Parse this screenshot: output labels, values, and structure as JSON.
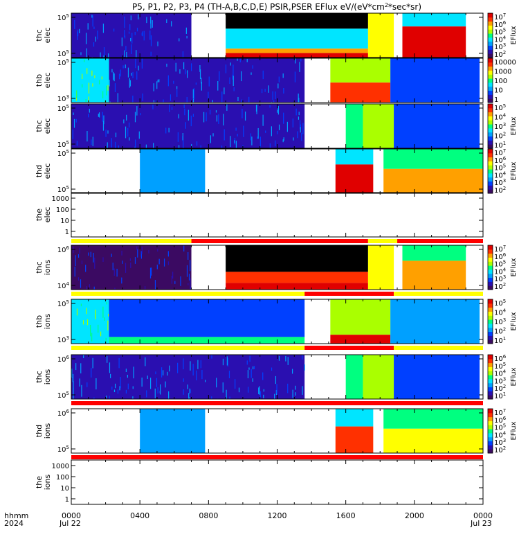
{
  "title_parts": {
    "prefix": "P5, P1, P2, P3, P4 (TH-A,B,C,D,E) PSIR,PSER EFlux eV/(eV*cm",
    "sup": "2",
    "suffix": "*sec*sr)"
  },
  "colors": {
    "void": "#000000",
    "gap": "#ffffff",
    "bar_yellow": "#ffff00",
    "bar_red": "#ff0000",
    "background_purple": "#3a0f6b"
  },
  "colorscale": [
    "#3b0a62",
    "#2a0fb0",
    "#0040ff",
    "#00a0ff",
    "#00e5ff",
    "#00ff80",
    "#aaff00",
    "#ffff00",
    "#ffa000",
    "#ff3000",
    "#e00000"
  ],
  "x_axis": {
    "range_hours": [
      0,
      24
    ],
    "tick_hours": [
      0,
      4,
      8,
      12,
      16,
      20,
      24
    ],
    "tick_labels": [
      "0000",
      "0400",
      "0800",
      "1200",
      "1600",
      "2000",
      "0000"
    ],
    "left_label_top": "hhmm",
    "left_label_bottom": "2024",
    "date_start": "Jul 22",
    "date_end": "Jul 23"
  },
  "chart_data": [
    {
      "type": "heatmap",
      "name": "thc-elec",
      "ylabel": [
        "thc",
        "elec"
      ],
      "y_ticks": [
        {
          "base": "10",
          "exp": "5"
        },
        {
          "base": "10",
          "exp": "5"
        }
      ],
      "colorbar": {
        "label": "EFlux",
        "ticks": [
          {
            "base": "10",
            "exp": "7"
          },
          {
            "base": "10",
            "exp": "6"
          },
          {
            "base": "10",
            "exp": "5"
          },
          {
            "base": "10",
            "exp": "4"
          },
          {
            "base": "10",
            "exp": "3"
          },
          {
            "base": "10",
            "exp": "2"
          }
        ]
      },
      "blocks": [
        {
          "x0": 0,
          "x1": 7,
          "y0": 0,
          "y1": 1,
          "level": 1,
          "noise": true
        },
        {
          "x0": 9,
          "x1": 17.3,
          "y0": 0,
          "y1": 0.35,
          "level": -1
        },
        {
          "x0": 9,
          "x1": 17.3,
          "y0": 0.35,
          "y1": 0.8,
          "level": 4
        },
        {
          "x0": 9,
          "x1": 17.3,
          "y0": 0.8,
          "y1": 0.9,
          "level": 8
        },
        {
          "x0": 9,
          "x1": 17.3,
          "y0": 0.9,
          "y1": 1,
          "level": 10
        },
        {
          "x0": 17.3,
          "x1": 18.8,
          "y0": 0,
          "y1": 1,
          "level": 7
        },
        {
          "x0": 19.3,
          "x1": 23,
          "y0": 0,
          "y1": 0.3,
          "level": 4
        },
        {
          "x0": 19.3,
          "x1": 23,
          "y0": 0.3,
          "y1": 1,
          "level": 10
        }
      ]
    },
    {
      "type": "heatmap",
      "name": "thb-elec",
      "ylabel": [
        "thb",
        "elec"
      ],
      "y_ticks": [
        {
          "base": "10",
          "exp": "5"
        },
        {
          "base": "10",
          "exp": "3"
        }
      ],
      "colorbar": {
        "label": "",
        "ticks": [
          {
            "base": "10000",
            "exp": ""
          },
          {
            "base": "1000",
            "exp": ""
          },
          {
            "base": "100",
            "exp": ""
          },
          {
            "base": "10",
            "exp": ""
          },
          {
            "base": "1",
            "exp": ""
          }
        ]
      },
      "blocks": [
        {
          "x0": 0,
          "x1": 2.2,
          "y0": 0,
          "y1": 1,
          "level": 4,
          "noise": true
        },
        {
          "x0": 2.2,
          "x1": 13.6,
          "y0": 0,
          "y1": 1,
          "level": 1,
          "noise": true
        },
        {
          "x0": 15.1,
          "x1": 18.6,
          "y0": 0,
          "y1": 0.55,
          "level": 6
        },
        {
          "x0": 15.1,
          "x1": 18.6,
          "y0": 0.55,
          "y1": 1,
          "level": 9
        },
        {
          "x0": 18.6,
          "x1": 23.8,
          "y0": 0,
          "y1": 1,
          "level": 2
        }
      ]
    },
    {
      "type": "heatmap",
      "name": "thc-elec-2",
      "ylabel": [
        "thc",
        "elec"
      ],
      "y_ticks": [
        {
          "base": "10",
          "exp": "5"
        },
        {
          "base": "10",
          "exp": "5"
        }
      ],
      "colorbar": {
        "label": "EFlux",
        "ticks": [
          {
            "base": "10",
            "exp": "5"
          },
          {
            "base": "10",
            "exp": "4"
          },
          {
            "base": "10",
            "exp": "3"
          },
          {
            "base": "10",
            "exp": "2"
          },
          {
            "base": "10",
            "exp": "1"
          }
        ]
      },
      "blocks": [
        {
          "x0": 0,
          "x1": 13.6,
          "y0": 0,
          "y1": 1,
          "level": 1,
          "noise": true
        },
        {
          "x0": 16,
          "x1": 17,
          "y0": 0,
          "y1": 1,
          "level": 5
        },
        {
          "x0": 17,
          "x1": 18.8,
          "y0": 0,
          "y1": 1,
          "level": 6
        },
        {
          "x0": 18.8,
          "x1": 23.8,
          "y0": 0,
          "y1": 1,
          "level": 2
        }
      ]
    },
    {
      "type": "heatmap",
      "name": "thd-elec",
      "ylabel": [
        "thd",
        "elec"
      ],
      "y_ticks": [
        {
          "base": "10",
          "exp": "5"
        },
        {
          "base": "10",
          "exp": "5"
        }
      ],
      "colorbar": {
        "label": "EFlux",
        "ticks": [
          {
            "base": "10",
            "exp": "7"
          },
          {
            "base": "10",
            "exp": "6"
          },
          {
            "base": "10",
            "exp": "5"
          },
          {
            "base": "10",
            "exp": "4"
          },
          {
            "base": "10",
            "exp": "3"
          },
          {
            "base": "10",
            "exp": "2"
          }
        ]
      },
      "blocks": [
        {
          "x0": 4,
          "x1": 7.8,
          "y0": 0,
          "y1": 1,
          "level": 3
        },
        {
          "x0": 15.4,
          "x1": 17.6,
          "y0": 0,
          "y1": 0.35,
          "level": 4
        },
        {
          "x0": 15.4,
          "x1": 17.6,
          "y0": 0.35,
          "y1": 1,
          "level": 10
        },
        {
          "x0": 18.2,
          "x1": 24,
          "y0": 0,
          "y1": 0.45,
          "level": 5
        },
        {
          "x0": 18.2,
          "x1": 24,
          "y0": 0.45,
          "y1": 1,
          "level": 8
        }
      ]
    },
    {
      "type": "line",
      "name": "the-elec",
      "ylabel": [
        "the",
        "elec"
      ],
      "y_ticks": [
        {
          "base": "1000",
          "exp": ""
        },
        {
          "base": "100",
          "exp": ""
        },
        {
          "base": "10",
          "exp": ""
        },
        {
          "base": "1",
          "exp": ""
        }
      ],
      "status_bar": [
        {
          "x0": 0,
          "x1": 7,
          "color": "bar_yellow"
        },
        {
          "x0": 7,
          "x1": 17.3,
          "color": "bar_red"
        },
        {
          "x0": 17.3,
          "x1": 19,
          "color": "bar_yellow"
        },
        {
          "x0": 19,
          "x1": 24,
          "color": "bar_red"
        }
      ]
    },
    {
      "type": "heatmap",
      "name": "thc-ions",
      "ylabel": [
        "thc",
        "ions"
      ],
      "y_ticks": [
        {
          "base": "10",
          "exp": "6"
        },
        {
          "base": "10",
          "exp": "4"
        }
      ],
      "colorbar": {
        "label": "EFlux",
        "ticks": [
          {
            "base": "10",
            "exp": "7"
          },
          {
            "base": "10",
            "exp": "6"
          },
          {
            "base": "10",
            "exp": "5"
          },
          {
            "base": "10",
            "exp": "4"
          },
          {
            "base": "10",
            "exp": "3"
          },
          {
            "base": "10",
            "exp": "2"
          }
        ]
      },
      "blocks": [
        {
          "x0": 0,
          "x1": 7,
          "y0": 0,
          "y1": 1,
          "level": 0,
          "noise": true
        },
        {
          "x0": 9,
          "x1": 17.3,
          "y0": 0,
          "y1": 0.6,
          "level": -1
        },
        {
          "x0": 9,
          "x1": 17.3,
          "y0": 0.6,
          "y1": 0.85,
          "level": 9
        },
        {
          "x0": 9,
          "x1": 17.3,
          "y0": 0.85,
          "y1": 1,
          "level": 10
        },
        {
          "x0": 17.3,
          "x1": 18.8,
          "y0": 0,
          "y1": 1,
          "level": 7
        },
        {
          "x0": 19.3,
          "x1": 23,
          "y0": 0,
          "y1": 0.35,
          "level": 5
        },
        {
          "x0": 19.3,
          "x1": 23,
          "y0": 0.35,
          "y1": 1,
          "level": 8
        }
      ],
      "status_bar": [
        {
          "x0": 0,
          "x1": 13.6,
          "color": "bar_yellow"
        },
        {
          "x0": 13.6,
          "x1": 18.8,
          "color": "bar_red"
        },
        {
          "x0": 18.8,
          "x1": 24,
          "color": "bar_yellow"
        }
      ]
    },
    {
      "type": "heatmap",
      "name": "thb-ions",
      "ylabel": [
        "thb",
        "ions"
      ],
      "y_ticks": [
        {
          "base": "10",
          "exp": "5"
        },
        {
          "base": "10",
          "exp": "3"
        }
      ],
      "colorbar": {
        "label": "EFlux",
        "ticks": [
          {
            "base": "10",
            "exp": "5"
          },
          {
            "base": "10",
            "exp": "4"
          },
          {
            "base": "10",
            "exp": "3"
          },
          {
            "base": "10",
            "exp": "2"
          },
          {
            "base": "10",
            "exp": "1"
          }
        ]
      },
      "blocks": [
        {
          "x0": 0,
          "x1": 2.2,
          "y0": 0,
          "y1": 1,
          "level": 4,
          "noise": true
        },
        {
          "x0": 2.2,
          "x1": 13.6,
          "y0": 0,
          "y1": 0.85,
          "level": 2
        },
        {
          "x0": 2.2,
          "x1": 13.6,
          "y0": 0.85,
          "y1": 1,
          "level": 5
        },
        {
          "x0": 15.1,
          "x1": 18.6,
          "y0": 0,
          "y1": 0.8,
          "level": 6
        },
        {
          "x0": 15.1,
          "x1": 18.6,
          "y0": 0.8,
          "y1": 1,
          "level": 10
        },
        {
          "x0": 18.6,
          "x1": 23.8,
          "y0": 0,
          "y1": 1,
          "level": 3
        }
      ],
      "status_bar": [
        {
          "x0": 0,
          "x1": 13.6,
          "color": "bar_yellow"
        },
        {
          "x0": 13.6,
          "x1": 18.8,
          "color": "bar_red"
        },
        {
          "x0": 18.8,
          "x1": 24,
          "color": "bar_yellow"
        }
      ]
    },
    {
      "type": "heatmap",
      "name": "thc-ions-2",
      "ylabel": [
        "thc",
        "ions"
      ],
      "y_ticks": [
        {
          "base": "10",
          "exp": "6"
        },
        {
          "base": "10",
          "exp": "5"
        }
      ],
      "colorbar": {
        "label": "EFlux",
        "ticks": [
          {
            "base": "10",
            "exp": "6"
          },
          {
            "base": "10",
            "exp": "5"
          },
          {
            "base": "10",
            "exp": "4"
          },
          {
            "base": "10",
            "exp": "3"
          },
          {
            "base": "10",
            "exp": "2"
          },
          {
            "base": "10",
            "exp": "1"
          }
        ]
      },
      "blocks": [
        {
          "x0": 0,
          "x1": 13.6,
          "y0": 0,
          "y1": 1,
          "level": 1,
          "noise": true
        },
        {
          "x0": 16,
          "x1": 17,
          "y0": 0,
          "y1": 1,
          "level": 5
        },
        {
          "x0": 17,
          "x1": 18.8,
          "y0": 0,
          "y1": 1,
          "level": 6
        },
        {
          "x0": 18.8,
          "x1": 23.8,
          "y0": 0,
          "y1": 1,
          "level": 2
        }
      ],
      "status_bar": [
        {
          "x0": 0,
          "x1": 24,
          "color": "bar_red"
        }
      ]
    },
    {
      "type": "heatmap",
      "name": "thd-ions",
      "ylabel": [
        "thd",
        "ions"
      ],
      "y_ticks": [
        {
          "base": "10",
          "exp": "6"
        },
        {
          "base": "10",
          "exp": "5"
        }
      ],
      "colorbar": {
        "label": "EFlux",
        "ticks": [
          {
            "base": "10",
            "exp": "7"
          },
          {
            "base": "10",
            "exp": "6"
          },
          {
            "base": "10",
            "exp": "5"
          },
          {
            "base": "10",
            "exp": "4"
          },
          {
            "base": "10",
            "exp": "3"
          },
          {
            "base": "10",
            "exp": "2"
          }
        ]
      },
      "blocks": [
        {
          "x0": 4,
          "x1": 7.8,
          "y0": 0,
          "y1": 1,
          "level": 3
        },
        {
          "x0": 15.4,
          "x1": 17.6,
          "y0": 0,
          "y1": 0.4,
          "level": 4
        },
        {
          "x0": 15.4,
          "x1": 17.6,
          "y0": 0.4,
          "y1": 1,
          "level": 9
        },
        {
          "x0": 18.2,
          "x1": 24,
          "y0": 0,
          "y1": 0.45,
          "level": 5
        },
        {
          "x0": 18.2,
          "x1": 24,
          "y0": 0.45,
          "y1": 1,
          "level": 7
        }
      ],
      "status_bar": [
        {
          "x0": 0,
          "x1": 24,
          "color": "bar_red"
        }
      ]
    },
    {
      "type": "line",
      "name": "the-ions",
      "ylabel": [
        "the",
        "ions"
      ],
      "y_ticks": [
        {
          "base": "1000",
          "exp": ""
        },
        {
          "base": "100",
          "exp": ""
        },
        {
          "base": "10",
          "exp": ""
        },
        {
          "base": "1",
          "exp": ""
        }
      ]
    }
  ]
}
